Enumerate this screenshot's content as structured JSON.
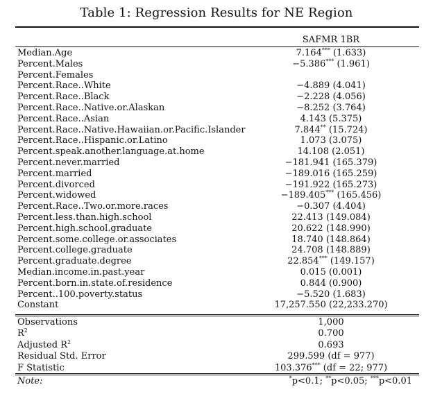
{
  "title": "Table 1: Regression Results for NE Region",
  "column_header": "SAFMR 1BR",
  "rows": [
    {
      "label": "Median.Age",
      "value": "7.164",
      "stars": "***",
      "se": "(1.633)"
    },
    {
      "label": "Percent.Males",
      "value": "−5.386",
      "stars": "***",
      "se": "(1.961)"
    },
    {
      "label": "Percent.Females",
      "value": "",
      "stars": "",
      "se": ""
    },
    {
      "label": "Percent.Race..White",
      "value": "−4.889",
      "stars": "",
      "se": "(4.041)"
    },
    {
      "label": "Percent.Race..Black",
      "value": "−2.228",
      "stars": "",
      "se": "(4.056)"
    },
    {
      "label": "Percent.Race..Native.or.Alaskan",
      "value": "−8.252",
      "stars": "",
      "se": "(3.764)"
    },
    {
      "label": "Percent.Race..Asian",
      "value": "4.143",
      "stars": "",
      "se": "(5.375)"
    },
    {
      "label": "Percent.Race..Native.Hawaiian.or.Pacific.Islander",
      "value": "7.844",
      "stars": "**",
      "se": "(15.724)"
    },
    {
      "label": "Percent.Race..Hispanic.or.Latino",
      "value": "1.073",
      "stars": "",
      "se": "(3.075)"
    },
    {
      "label": "Percent.speak.another.language.at.home",
      "value": "14.108",
      "stars": "",
      "se": "(2.051)"
    },
    {
      "label": "Percent.never.married",
      "value": "−181.941",
      "stars": "",
      "se": "(165.379)"
    },
    {
      "label": "Percent.married",
      "value": "−189.016",
      "stars": "",
      "se": "(165.259)"
    },
    {
      "label": "Percent.divorced",
      "value": "−191.922",
      "stars": "",
      "se": "(165.273)"
    },
    {
      "label": "Percent.widowed",
      "value": "−189.405",
      "stars": "***",
      "se": "(165.456)"
    },
    {
      "label": "Percent.Race..Two.or.more.races",
      "value": "−0.307",
      "stars": "",
      "se": "(4.404)"
    },
    {
      "label": "Percent.less.than.high.school",
      "value": "22.413",
      "stars": "",
      "se": "(149.084)"
    },
    {
      "label": "Percent.high.school.graduate",
      "value": "20.622",
      "stars": "",
      "se": "(148.990)"
    },
    {
      "label": "Percent.some.college.or.associates",
      "value": "18.740",
      "stars": "",
      "se": "(148.864)"
    },
    {
      "label": "Percent.college.graduate",
      "value": "24.708",
      "stars": "",
      "se": "(148.889)"
    },
    {
      "label": "Percent.graduate.degree",
      "value": "22.854",
      "stars": "***",
      "se": "(149.157)"
    },
    {
      "label": "Median.income.in.past.year",
      "value": "0.015",
      "stars": "",
      "se": "(0.001)"
    },
    {
      "label": "Percent.born.in.state.of.residence",
      "value": "0.844",
      "stars": "",
      "se": "(0.900)"
    },
    {
      "label": "Percent..100.poverty.status",
      "value": "−5.520",
      "stars": "",
      "se": "(1.683)"
    },
    {
      "label": "Constant",
      "value": "17,257.550",
      "stars": "",
      "se": "(22,233.270)"
    }
  ],
  "stats": [
    {
      "label": "Observations",
      "sup": "",
      "value": "1,000",
      "stars": "",
      "extra": ""
    },
    {
      "label": "R",
      "sup": "2",
      "value": "0.700",
      "stars": "",
      "extra": ""
    },
    {
      "label": "Adjusted R",
      "sup": "2",
      "value": "0.693",
      "stars": "",
      "extra": ""
    },
    {
      "label": "Residual Std. Error",
      "sup": "",
      "value": "299.599",
      "stars": "",
      "extra": "(df = 977)"
    },
    {
      "label": "F Statistic",
      "sup": "",
      "value": "103.376",
      "stars": "***",
      "extra": "(df = 22; 977)"
    }
  ],
  "note": {
    "label": "Note:",
    "items": [
      {
        "stars": "*",
        "text": "p<0.1;"
      },
      {
        "stars": "**",
        "text": "p<0.05;"
      },
      {
        "stars": "***",
        "text": "p<0.01"
      }
    ]
  }
}
